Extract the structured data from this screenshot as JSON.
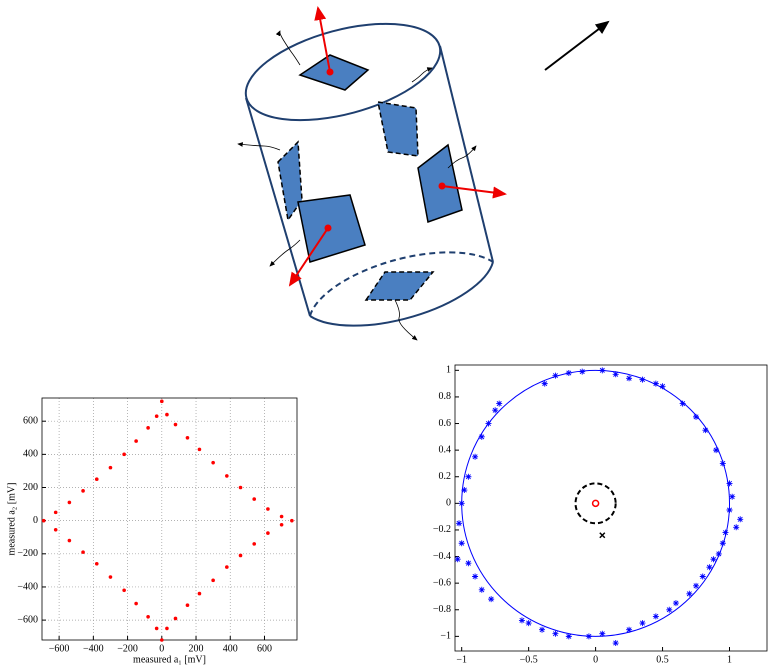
{
  "chart_data": [
    {
      "type": "scatter",
      "x_label": "measured a₁ [mV]",
      "y_label": "measured a₂ [mV]",
      "xlim": [
        -700,
        790
      ],
      "ylim": [
        -720,
        740
      ],
      "xticks": [
        {
          "value": -600,
          "label": "−600"
        },
        {
          "value": -400,
          "label": "−400"
        },
        {
          "value": -200,
          "label": "−200"
        },
        0,
        200,
        400,
        600
      ],
      "yticks": [
        {
          "value": -600,
          "label": "−600"
        },
        {
          "value": -400,
          "label": "−400"
        },
        {
          "value": -200,
          "label": "−200"
        },
        0,
        200,
        400,
        600
      ],
      "grid": true,
      "series": [
        {
          "color": "#ff0000",
          "marker": "dot",
          "x": [
            0,
            30,
            80,
            150,
            220,
            300,
            380,
            460,
            540,
            620,
            700,
            760,
            700,
            620,
            540,
            460,
            380,
            300,
            220,
            150,
            80,
            30,
            0,
            -30,
            -80,
            -150,
            -220,
            -300,
            -380,
            -460,
            -540,
            -620,
            -690,
            -620,
            -540,
            -460,
            -380,
            -300,
            -220,
            -150,
            -80,
            -30
          ],
          "values": [
            720,
            640,
            580,
            500,
            430,
            350,
            270,
            200,
            130,
            70,
            25,
            0,
            -25,
            -75,
            -140,
            -210,
            -280,
            -360,
            -440,
            -510,
            -590,
            -650,
            -720,
            -650,
            -580,
            -500,
            -420,
            -340,
            -260,
            -190,
            -120,
            -55,
            0,
            50,
            110,
            180,
            250,
            320,
            400,
            480,
            560,
            630
          ]
        }
      ]
    },
    {
      "type": "scatter",
      "xlim": [
        -1.05,
        1.28
      ],
      "ylim": [
        -1.11,
        1.04
      ],
      "xticks": [
        {
          "value": -1,
          "label": "−1"
        },
        {
          "value": -0.5,
          "label": "−0.5"
        },
        0,
        0.5,
        1
      ],
      "yticks": [
        {
          "value": -1,
          "label": "−1"
        },
        {
          "value": -0.8,
          "label": "−0.8"
        },
        {
          "value": -0.6,
          "label": "−0.6"
        },
        {
          "value": -0.4,
          "label": "−0.4"
        },
        {
          "value": -0.2,
          "label": "−0.2"
        },
        0,
        0.2,
        0.4,
        0.6,
        0.8,
        1
      ],
      "grid": false,
      "circles": [
        {
          "cx": 0,
          "cy": 0,
          "r": 1,
          "color": "#0000ff",
          "dashed": false
        },
        {
          "cx": 0,
          "cy": 0,
          "r": 0.15,
          "color": "#000000",
          "dashed": true
        }
      ],
      "series": [
        {
          "color": "#0000ff",
          "marker": "star",
          "x": [
            -0.2,
            -0.1,
            0.05,
            0.15,
            0.25,
            0.35,
            0.45,
            0.5,
            -0.3,
            -0.38,
            -0.72,
            -0.75,
            -0.8,
            -0.85,
            -0.9,
            -0.95,
            -0.98,
            -1.0,
            -1.02,
            -1.0,
            -1.03,
            -0.95,
            -0.9,
            -0.85,
            -0.78,
            -0.55,
            -0.5,
            -0.4,
            -0.3,
            -0.2,
            -0.05,
            0.05,
            0.15,
            0.25,
            0.35,
            0.45,
            0.55,
            0.6,
            0.7,
            0.75,
            0.8,
            0.85,
            0.88,
            0.92,
            0.95,
            0.97,
            1.05,
            1.08,
            1.0,
            1.02,
            1.0,
            0.95,
            0.9,
            0.82,
            0.75,
            0.65
          ],
          "values": [
            0.98,
            0.99,
            1.0,
            0.97,
            0.94,
            0.93,
            0.9,
            0.88,
            0.96,
            0.9,
            0.75,
            0.7,
            0.6,
            0.5,
            0.35,
            0.2,
            0.1,
            0.0,
            -0.15,
            -0.3,
            -0.42,
            -0.45,
            -0.55,
            -0.65,
            -0.72,
            -0.88,
            -0.9,
            -0.95,
            -0.98,
            -1.0,
            -1.0,
            -0.98,
            -1.05,
            -0.95,
            -0.9,
            -0.85,
            -0.8,
            -0.75,
            -0.68,
            -0.62,
            -0.55,
            -0.48,
            -0.42,
            -0.38,
            -0.3,
            -0.22,
            -0.18,
            -0.12,
            -0.05,
            0.05,
            0.15,
            0.3,
            0.4,
            0.55,
            0.65,
            0.75
          ]
        },
        {
          "color": "#ff0000",
          "marker": "o",
          "x": [
            0
          ],
          "values": [
            0
          ]
        },
        {
          "color": "#000000",
          "marker": "x",
          "x": [
            0.05
          ],
          "values": [
            -0.24
          ]
        }
      ]
    }
  ]
}
